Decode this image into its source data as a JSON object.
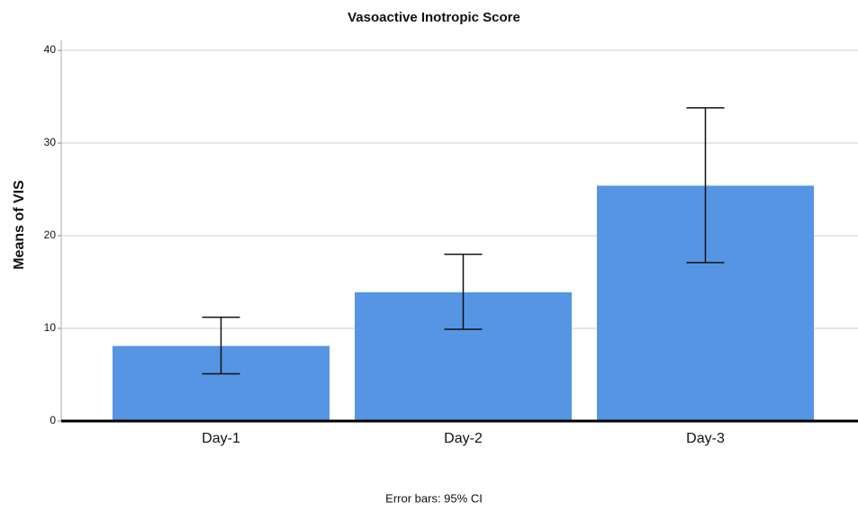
{
  "chart_data": {
    "type": "bar",
    "title": "Vasoactive Inotropic Score",
    "y_label": "Means of VIS",
    "caption": "Error bars: 95% CI",
    "categories": [
      "Day-1",
      "Day-2",
      "Day-3"
    ],
    "values": [
      8.1,
      13.9,
      25.4
    ],
    "ci_lower": [
      5.1,
      9.9,
      17.1
    ],
    "ci_upper": [
      11.2,
      18.0,
      33.8
    ],
    "color": "#5595e3",
    "ylim": [
      0,
      40
    ],
    "yticks": [
      0,
      10,
      20,
      30,
      40
    ],
    "grid": true
  }
}
